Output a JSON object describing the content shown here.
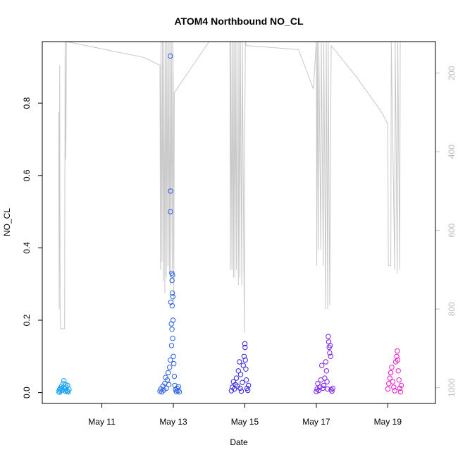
{
  "chart_data": {
    "type": "scatter",
    "title": "ATOM4 Northbound NO_CL",
    "xlabel": "Date",
    "ylabel": "NO_CL",
    "xlim": [
      "2017-05-09T08:00",
      "2017-05-20T08:00"
    ],
    "ylim": [
      -0.03,
      0.97
    ],
    "x_ticks": [
      "2017-05-11",
      "2017-05-13",
      "2017-05-15",
      "2017-05-17",
      "2017-05-19"
    ],
    "x_tick_labels": [
      "May 11",
      "May 13",
      "May 15",
      "May 17",
      "May 19"
    ],
    "y_ticks": [
      0.0,
      0.2,
      0.4,
      0.6,
      0.8
    ],
    "y_tick_labels": [
      "0.0",
      "0.2",
      "0.4",
      "0.6",
      "0.8"
    ],
    "y2_ticks": [
      200,
      400,
      600,
      800,
      1000
    ],
    "y2_tick_labels": [
      "200",
      "400",
      "600",
      "800",
      "1000"
    ],
    "y2_lim": [
      1040,
      120
    ],
    "y2_reversed": true,
    "grid": false,
    "series": [
      {
        "marker": "open-circle",
        "color": "#1aa3f0",
        "points": [
          [
            "2017-05-09T19:00",
            0.003
          ],
          [
            "2017-05-09T19:30",
            0.008
          ],
          [
            "2017-05-09T20:00",
            0.012
          ],
          [
            "2017-05-09T20:30",
            0.005
          ],
          [
            "2017-05-09T21:00",
            0.018
          ],
          [
            "2017-05-09T21:30",
            0.007
          ],
          [
            "2017-05-09T22:00",
            0.025
          ],
          [
            "2017-05-09T22:30",
            0.033
          ],
          [
            "2017-05-09T23:00",
            0.01
          ],
          [
            "2017-05-09T23:30",
            0.004
          ],
          [
            "2017-05-10T00:00",
            0.015
          ],
          [
            "2017-05-10T00:30",
            0.006
          ],
          [
            "2017-05-10T01:00",
            0.02
          ],
          [
            "2017-05-10T01:30",
            0.002
          ],
          [
            "2017-05-10T02:00",
            0.009
          ],
          [
            "2017-05-09T19:45",
            0.001
          ],
          [
            "2017-05-09T20:45",
            0.011
          ],
          [
            "2017-05-09T22:15",
            0.014
          ],
          [
            "2017-05-09T23:45",
            0.022
          ],
          [
            "2017-05-10T00:45",
            0.003
          ]
        ]
      },
      {
        "marker": "open-circle",
        "color": "#2a5fe6",
        "points": [
          [
            "2017-05-12T15:00",
            0.004
          ],
          [
            "2017-05-12T15:40",
            0.01
          ],
          [
            "2017-05-12T16:20",
            0.002
          ],
          [
            "2017-05-12T17:00",
            0.018
          ],
          [
            "2017-05-12T17:40",
            0.007
          ],
          [
            "2017-05-12T18:20",
            0.026
          ],
          [
            "2017-05-12T18:50",
            0.042
          ],
          [
            "2017-05-12T19:20",
            0.012
          ],
          [
            "2017-05-12T20:00",
            0.035
          ],
          [
            "2017-05-12T20:30",
            0.055
          ],
          [
            "2017-05-12T21:00",
            0.022
          ],
          [
            "2017-05-12T21:30",
            0.07
          ],
          [
            "2017-05-12T22:00",
            0.09
          ],
          [
            "2017-05-12T22:00",
            0.93
          ],
          [
            "2017-05-12T22:10",
            0.557
          ],
          [
            "2017-05-12T22:05",
            0.5
          ],
          [
            "2017-05-12T22:20",
            0.25
          ],
          [
            "2017-05-12T22:40",
            0.19
          ],
          [
            "2017-05-12T23:00",
            0.33
          ],
          [
            "2017-05-12T23:10",
            0.31
          ],
          [
            "2017-05-12T23:30",
            0.325
          ],
          [
            "2017-05-12T23:20",
            0.275
          ],
          [
            "2017-05-12T23:40",
            0.265
          ],
          [
            "2017-05-12T23:15",
            0.24
          ],
          [
            "2017-05-12T23:45",
            0.2
          ],
          [
            "2017-05-12T23:05",
            0.175
          ],
          [
            "2017-05-12T23:35",
            0.15
          ],
          [
            "2017-05-12T22:50",
            0.13
          ],
          [
            "2017-05-13T00:00",
            0.1
          ],
          [
            "2017-05-13T00:20",
            0.08
          ],
          [
            "2017-05-13T00:40",
            0.045
          ],
          [
            "2017-05-13T01:00",
            0.02
          ],
          [
            "2017-05-13T01:30",
            0.008
          ],
          [
            "2017-05-13T02:00",
            0.003
          ],
          [
            "2017-05-13T02:30",
            0.012
          ],
          [
            "2017-05-13T03:00",
            0.005
          ],
          [
            "2017-05-13T03:30",
            0.016
          ],
          [
            "2017-05-13T04:00",
            0.002
          ]
        ]
      },
      {
        "marker": "open-circle",
        "color": "#3322e8",
        "points": [
          [
            "2017-05-14T15:00",
            0.005
          ],
          [
            "2017-05-14T15:40",
            0.015
          ],
          [
            "2017-05-14T16:20",
            0.03
          ],
          [
            "2017-05-14T17:00",
            0.01
          ],
          [
            "2017-05-14T17:40",
            0.022
          ],
          [
            "2017-05-14T18:20",
            0.04
          ],
          [
            "2017-05-14T19:00",
            0.018
          ],
          [
            "2017-05-14T19:40",
            0.06
          ],
          [
            "2017-05-14T20:20",
            0.085
          ],
          [
            "2017-05-14T20:50",
            0.012
          ],
          [
            "2017-05-14T21:10",
            0.05
          ],
          [
            "2017-05-14T21:40",
            0.004
          ],
          [
            "2017-05-14T22:20",
            0.028
          ],
          [
            "2017-05-14T23:00",
            0.075
          ],
          [
            "2017-05-14T23:30",
            0.1
          ],
          [
            "2017-05-15T00:00",
            0.135
          ],
          [
            "2017-05-15T00:10",
            0.125
          ],
          [
            "2017-05-15T00:20",
            0.09
          ],
          [
            "2017-05-15T00:40",
            0.065
          ],
          [
            "2017-05-15T01:00",
            0.035
          ],
          [
            "2017-05-15T01:30",
            0.012
          ],
          [
            "2017-05-15T02:00",
            0.006
          ],
          [
            "2017-05-15T02:30",
            0.02
          ]
        ]
      },
      {
        "marker": "open-circle",
        "color": "#7a1ff0",
        "points": [
          [
            "2017-05-17T00:00",
            0.003
          ],
          [
            "2017-05-17T00:30",
            0.01
          ],
          [
            "2017-05-17T01:00",
            0.025
          ],
          [
            "2017-05-17T01:40",
            0.006
          ],
          [
            "2017-05-17T02:20",
            0.015
          ],
          [
            "2017-05-17T03:00",
            0.035
          ],
          [
            "2017-05-17T03:40",
            0.075
          ],
          [
            "2017-05-17T04:20",
            0.012
          ],
          [
            "2017-05-17T05:00",
            0.02
          ],
          [
            "2017-05-17T05:40",
            0.04
          ],
          [
            "2017-05-17T06:20",
            0.085
          ],
          [
            "2017-05-17T06:50",
            0.06
          ],
          [
            "2017-05-17T07:10",
            0.03
          ],
          [
            "2017-05-17T07:30",
            0.01
          ],
          [
            "2017-05-17T08:00",
            0.155
          ],
          [
            "2017-05-17T08:20",
            0.14
          ],
          [
            "2017-05-17T08:40",
            0.125
          ],
          [
            "2017-05-17T09:00",
            0.11
          ],
          [
            "2017-05-17T09:20",
            0.13
          ],
          [
            "2017-05-17T09:40",
            0.1
          ],
          [
            "2017-05-17T10:00",
            0.008
          ],
          [
            "2017-05-17T10:30",
            0.004
          ],
          [
            "2017-05-17T11:00",
            0.012
          ]
        ]
      },
      {
        "marker": "open-circle",
        "color": "#e81ac8",
        "points": [
          [
            "2017-05-19T00:00",
            0.01
          ],
          [
            "2017-05-19T00:40",
            0.025
          ],
          [
            "2017-05-19T01:20",
            0.04
          ],
          [
            "2017-05-19T02:00",
            0.055
          ],
          [
            "2017-05-19T02:40",
            0.07
          ],
          [
            "2017-05-19T03:20",
            0.03
          ],
          [
            "2017-05-19T04:00",
            0.015
          ],
          [
            "2017-05-19T04:40",
            0.005
          ],
          [
            "2017-05-19T05:20",
            0.085
          ],
          [
            "2017-05-19T06:00",
            0.1
          ],
          [
            "2017-05-19T06:20",
            0.115
          ],
          [
            "2017-05-19T06:40",
            0.09
          ],
          [
            "2017-05-19T07:00",
            0.06
          ],
          [
            "2017-05-19T07:30",
            0.035
          ],
          [
            "2017-05-19T08:00",
            0.012
          ],
          [
            "2017-05-19T08:30",
            0.002
          ],
          [
            "2017-05-19T09:00",
            0.02
          ]
        ]
      }
    ],
    "secondary_series": {
      "type": "line",
      "color": "#c8c8c8",
      "axis": "right",
      "points": [
        [
          "2017-05-09T19:00",
          300
        ],
        [
          "2017-05-09T19:20",
          800
        ],
        [
          "2017-05-09T19:40",
          180
        ],
        [
          "2017-05-09T20:00",
          820
        ],
        [
          "2017-05-09T20:20",
          850
        ],
        [
          "2017-05-09T23:00",
          850
        ],
        [
          "2017-05-09T23:20",
          120
        ],
        [
          "2017-05-09T23:50",
          420
        ],
        [
          "2017-05-10T00:10",
          120
        ],
        [
          "2017-05-12T04:00",
          160
        ],
        [
          "2017-05-12T15:00",
          180
        ],
        [
          "2017-05-12T15:20",
          700
        ],
        [
          "2017-05-12T15:40",
          120
        ],
        [
          "2017-05-12T16:20",
          680
        ],
        [
          "2017-05-12T16:40",
          120
        ],
        [
          "2017-05-12T17:20",
          730
        ],
        [
          "2017-05-12T17:40",
          120
        ],
        [
          "2017-05-12T18:20",
          760
        ],
        [
          "2017-05-12T18:40",
          120
        ],
        [
          "2017-05-12T19:20",
          720
        ],
        [
          "2017-05-12T19:40",
          120
        ],
        [
          "2017-05-12T20:20",
          690
        ],
        [
          "2017-05-12T20:40",
          120
        ],
        [
          "2017-05-12T21:20",
          710
        ],
        [
          "2017-05-12T21:40",
          120
        ],
        [
          "2017-05-12T22:20",
          740
        ],
        [
          "2017-05-12T22:40",
          120
        ],
        [
          "2017-05-12T23:20",
          700
        ],
        [
          "2017-05-12T23:40",
          120
        ],
        [
          "2017-05-13T00:00",
          250
        ],
        [
          "2017-05-13T00:20",
          780
        ],
        [
          "2017-05-13T00:40",
          250
        ],
        [
          "2017-05-14T00:00",
          120
        ],
        [
          "2017-05-14T14:00",
          120
        ],
        [
          "2017-05-14T14:20",
          700
        ],
        [
          "2017-05-14T14:40",
          120
        ],
        [
          "2017-05-14T15:20",
          700
        ],
        [
          "2017-05-14T15:40",
          120
        ],
        [
          "2017-05-14T16:20",
          720
        ],
        [
          "2017-05-14T16:40",
          120
        ],
        [
          "2017-05-14T17:20",
          720
        ],
        [
          "2017-05-14T17:40",
          120
        ],
        [
          "2017-05-14T18:20",
          700
        ],
        [
          "2017-05-14T18:40",
          120
        ],
        [
          "2017-05-14T19:40",
          740
        ],
        [
          "2017-05-14T20:00",
          120
        ],
        [
          "2017-05-14T20:40",
          720
        ],
        [
          "2017-05-14T21:00",
          120
        ],
        [
          "2017-05-14T22:00",
          740
        ],
        [
          "2017-05-14T22:20",
          120
        ],
        [
          "2017-05-14T23:40",
          860
        ],
        [
          "2017-05-15T00:00",
          330
        ],
        [
          "2017-05-15T00:20",
          120
        ],
        [
          "2017-05-15T01:00",
          130
        ],
        [
          "2017-05-16T12:00",
          140
        ],
        [
          "2017-05-16T22:00",
          240
        ],
        [
          "2017-05-17T00:00",
          120
        ],
        [
          "2017-05-17T00:20",
          690
        ],
        [
          "2017-05-17T00:40",
          120
        ],
        [
          "2017-05-17T01:20",
          650
        ],
        [
          "2017-05-17T01:40",
          120
        ],
        [
          "2017-05-17T03:00",
          650
        ],
        [
          "2017-05-17T03:20",
          120
        ],
        [
          "2017-05-17T04:40",
          690
        ],
        [
          "2017-05-17T05:00",
          120
        ],
        [
          "2017-05-17T06:20",
          800
        ],
        [
          "2017-05-17T06:40",
          120
        ],
        [
          "2017-05-17T07:40",
          800
        ],
        [
          "2017-05-17T08:00",
          120
        ],
        [
          "2017-05-17T09:00",
          790
        ],
        [
          "2017-05-17T10:00",
          130
        ],
        [
          "2017-05-18T03:00",
          210
        ],
        [
          "2017-05-18T20:00",
          300
        ],
        [
          "2017-05-19T00:00",
          330
        ],
        [
          "2017-05-19T00:20",
          690
        ],
        [
          "2017-05-19T02:00",
          690
        ],
        [
          "2017-05-19T02:20",
          120
        ],
        [
          "2017-05-19T04:40",
          700
        ],
        [
          "2017-05-19T05:00",
          120
        ],
        [
          "2017-05-19T06:20",
          710
        ],
        [
          "2017-05-19T06:40",
          120
        ],
        [
          "2017-05-19T08:00",
          700
        ],
        [
          "2017-05-19T08:20",
          120
        ]
      ]
    }
  }
}
